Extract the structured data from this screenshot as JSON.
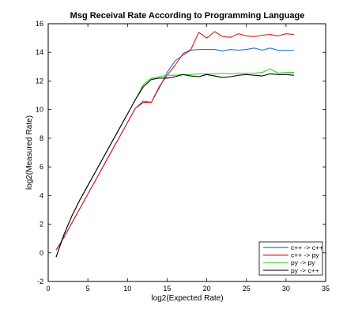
{
  "chart_data": {
    "type": "line",
    "title": "Msg Receival Rate According to Programming Language",
    "xlabel": "log2(Expected Rate)",
    "ylabel": "log2(Measured Rate)",
    "xlim": [
      0,
      35
    ],
    "ylim": [
      -2,
      16
    ],
    "xticks": [
      0,
      5,
      10,
      15,
      20,
      25,
      30,
      35
    ],
    "yticks": [
      -2,
      0,
      2,
      4,
      6,
      8,
      10,
      12,
      14,
      16
    ],
    "grid": false,
    "legend_position": "bottom-right",
    "x": [
      1,
      2,
      3,
      4,
      5,
      6,
      7,
      8,
      9,
      10,
      11,
      12,
      13,
      14,
      15,
      16,
      17,
      18,
      19,
      20,
      21,
      22,
      23,
      24,
      25,
      26,
      27,
      28,
      29,
      30,
      31
    ],
    "series": [
      {
        "name": "c++ -> c++",
        "color": "#1f77d4",
        "values": [
          0.2,
          1.1,
          2.1,
          3.1,
          4.1,
          5.1,
          6.1,
          7.1,
          8.1,
          9.1,
          10.1,
          10.6,
          10.5,
          11.5,
          12.6,
          13.4,
          13.8,
          14.15,
          14.2,
          14.2,
          14.2,
          14.1,
          14.2,
          14.15,
          14.2,
          14.3,
          14.15,
          14.3,
          14.15,
          14.15,
          14.15
        ]
      },
      {
        "name": "c++ -> py",
        "color": "#e0161f",
        "values": [
          0.2,
          1.1,
          2.1,
          3.1,
          4.1,
          5.1,
          6.1,
          7.1,
          8.1,
          9.1,
          10.1,
          10.5,
          10.5,
          11.6,
          12.4,
          13.1,
          13.9,
          14.2,
          15.4,
          15.0,
          15.45,
          15.1,
          15.05,
          15.3,
          15.15,
          15.1,
          15.2,
          15.25,
          15.15,
          15.3,
          15.25
        ]
      },
      {
        "name": "py -> py",
        "color": "#2bd61a",
        "values": [
          -0.3,
          1.3,
          2.6,
          3.7,
          4.7,
          5.7,
          6.7,
          7.7,
          8.7,
          9.7,
          10.7,
          11.75,
          12.2,
          12.3,
          12.4,
          12.4,
          12.45,
          12.45,
          12.5,
          12.5,
          12.5,
          12.55,
          12.5,
          12.55,
          12.55,
          12.55,
          12.6,
          12.85,
          12.55,
          12.6,
          12.6
        ]
      },
      {
        "name": "py -> c++",
        "color": "#000000",
        "values": [
          -0.3,
          1.3,
          2.6,
          3.7,
          4.7,
          5.7,
          6.7,
          7.7,
          8.7,
          9.7,
          10.7,
          11.6,
          12.1,
          12.2,
          12.2,
          12.3,
          12.45,
          12.35,
          12.3,
          12.45,
          12.35,
          12.25,
          12.3,
          12.4,
          12.45,
          12.4,
          12.35,
          12.5,
          12.45,
          12.45,
          12.4
        ]
      }
    ]
  }
}
